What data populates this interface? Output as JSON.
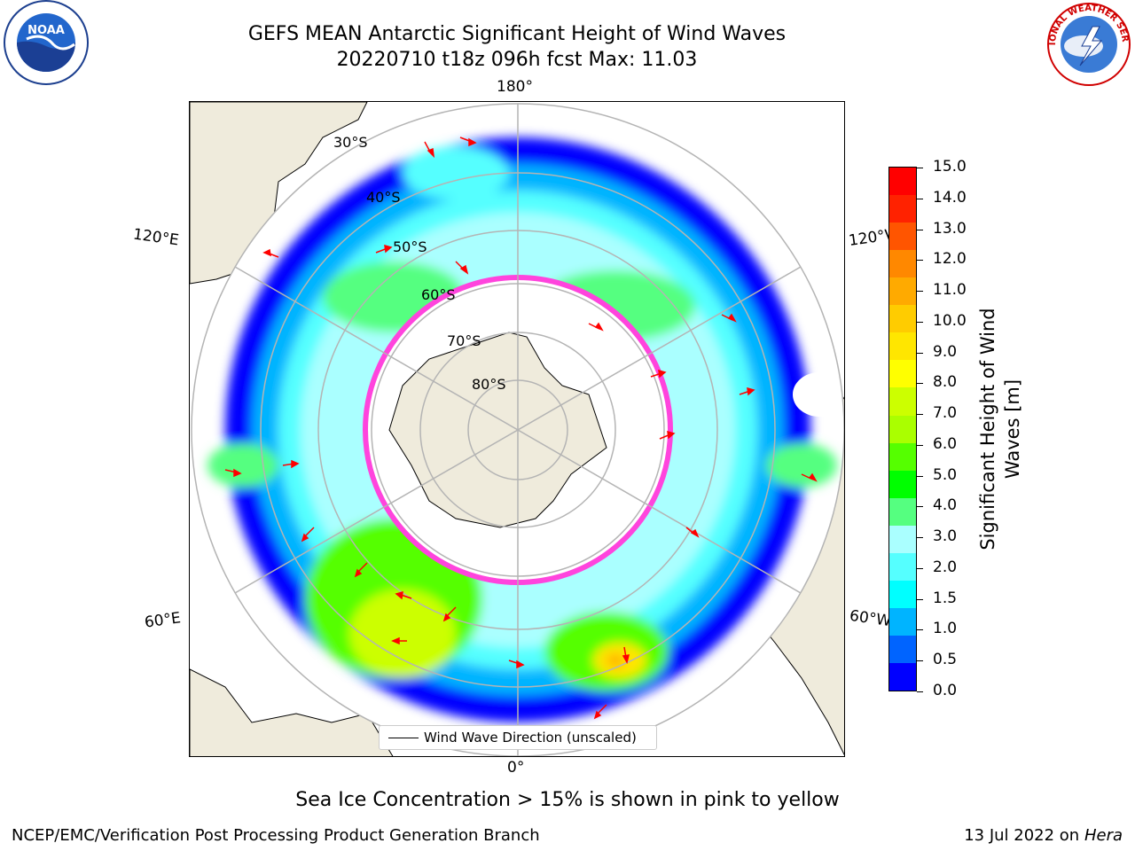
{
  "title": {
    "line1": "GEFS MEAN Antarctic Significant Height of Wind Waves",
    "line2": "20220710 t18z 096h fcst   Max: 11.03"
  },
  "logos": {
    "left": "NOAA",
    "right": "NATIONAL WEATHER SERVICE"
  },
  "map": {
    "longitude_labels": {
      "top": "180°",
      "bottom": "0°",
      "upper_left": "120°E",
      "upper_right": "120°W",
      "lower_left": "60°E",
      "lower_right": "60°W"
    },
    "latitude_labels": [
      "30°S",
      "40°S",
      "50°S",
      "60°S",
      "70°S",
      "80°S"
    ],
    "colors": {
      "land": "#efebdc",
      "sea_ice_edge": "#ff44dd",
      "arrows": "#ff0000",
      "grid": "#b4b4b4"
    }
  },
  "legend": {
    "label": "Wind Wave Direction (unscaled)"
  },
  "colorbar": {
    "label": "Significant Height of Wind Waves [m]",
    "ticks": [
      "15.0",
      "14.0",
      "13.0",
      "12.0",
      "11.0",
      "10.0",
      "9.0",
      "8.0",
      "7.0",
      "6.0",
      "5.0",
      "4.0",
      "3.0",
      "2.0",
      "1.5",
      "1.0",
      "0.5",
      "0.0"
    ],
    "colors": [
      "#0000ff",
      "#0064ff",
      "#00b4ff",
      "#00ffff",
      "#55ffff",
      "#aaffff",
      "#55ff80",
      "#00ff00",
      "#55ff00",
      "#aaff00",
      "#ccff00",
      "#ffff00",
      "#ffe600",
      "#ffcc00",
      "#ffaa00",
      "#ff8800",
      "#ff5500",
      "#ff2200",
      "#ff0000"
    ]
  },
  "note": "Sea Ice Concentration > 15% is shown in pink to yellow",
  "footer": {
    "left": "NCEP/EMC/Verification Post Processing Product Generation Branch",
    "right_date": "13 Jul 2022 on ",
    "right_host": "Hera"
  }
}
